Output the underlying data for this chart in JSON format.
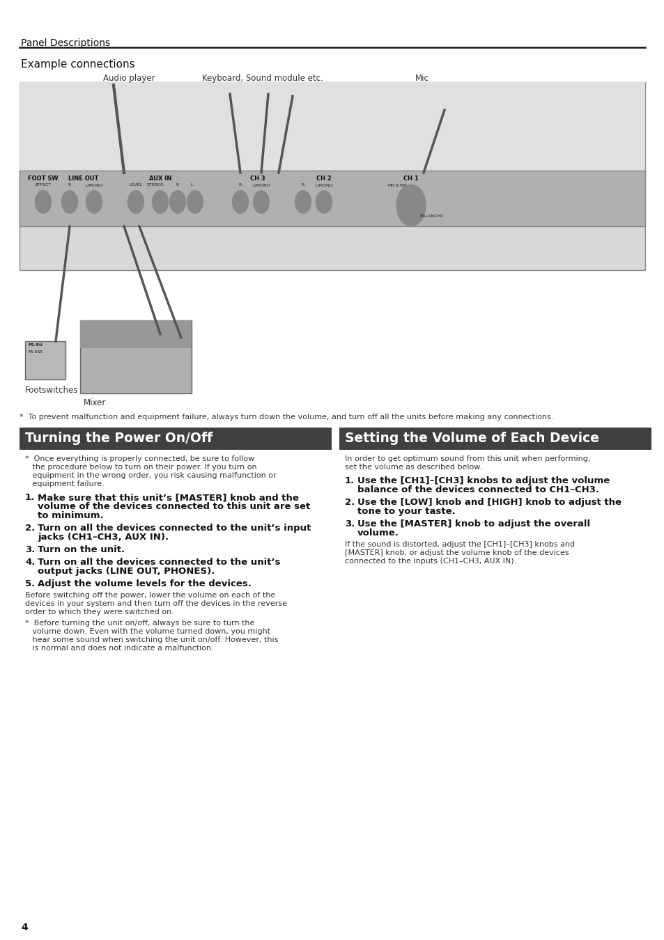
{
  "page_number": "4",
  "header_text": "Panel Descriptions",
  "section_title": "Example connections",
  "warning_text": "*  To prevent malfunction and equipment failure, always turn down the volume, and turn off all the units before making any connections.",
  "left_section_title": "Turning the Power On/Off",
  "right_section_title": "Setting the Volume of Each Device",
  "left_intro_lines": [
    "*  Once everything is properly connected, be sure to follow",
    "   the procedure below to turn on their power. If you turn on",
    "   equipment in the wrong order, you risk causing malfunction or",
    "   equipment failure."
  ],
  "left_step1": "Make sure that this unit’s [MASTER] knob and the\nvolume of the devices connected to this unit are set\nto minimum.",
  "left_step2": "Turn on all the devices connected to the unit’s input\njacks (CH1–CH3, AUX IN).",
  "left_step3": "Turn on the unit.",
  "left_step4": "Turn on all the devices connected to the unit’s\noutput jacks (LINE OUT, PHONES).",
  "left_step5_bold": "Adjust the volume levels for the devices.",
  "left_step5_body": [
    "Before switching off the power, lower the volume on each of the",
    "devices in your system and then turn off the devices in the reverse",
    "order to which they were switched on."
  ],
  "left_step5_note": [
    "*  Before turning the unit on/off, always be sure to turn the",
    "   volume down. Even with the volume turned down, you might",
    "   hear some sound when switching the unit on/off. However, this",
    "   is normal and does not indicate a malfunction."
  ],
  "right_intro_lines": [
    "In order to get optimum sound from this unit when performing,",
    "set the volume as described below."
  ],
  "right_step1": "Use the [CH1]–[CH3] knobs to adjust the volume\nbalance of the devices connected to CH1–CH3.",
  "right_step2": "Use the [LOW] knob and [HIGH] knob to adjust the\ntone to your taste.",
  "right_step3_bold": "Use the [MASTER] knob to adjust the overall\nvolume.",
  "right_step3_body": [
    "If the sound is distorted, adjust the [CH1]–[CH3] knobs and",
    "[MASTER] knob, or adjust the volume knob of the devices",
    "connected to the inputs (CH1–CH3, AUX IN)."
  ],
  "device_labels": [
    "Audio player",
    "Keyboard, Sound module etc.",
    "Mic",
    "Footswitches",
    "Mixer"
  ],
  "section_header_color": "#404040",
  "section_header_text_color": "#ffffff",
  "background_color": "#ffffff",
  "header_line_color": "#222222",
  "text_color": "#222222"
}
